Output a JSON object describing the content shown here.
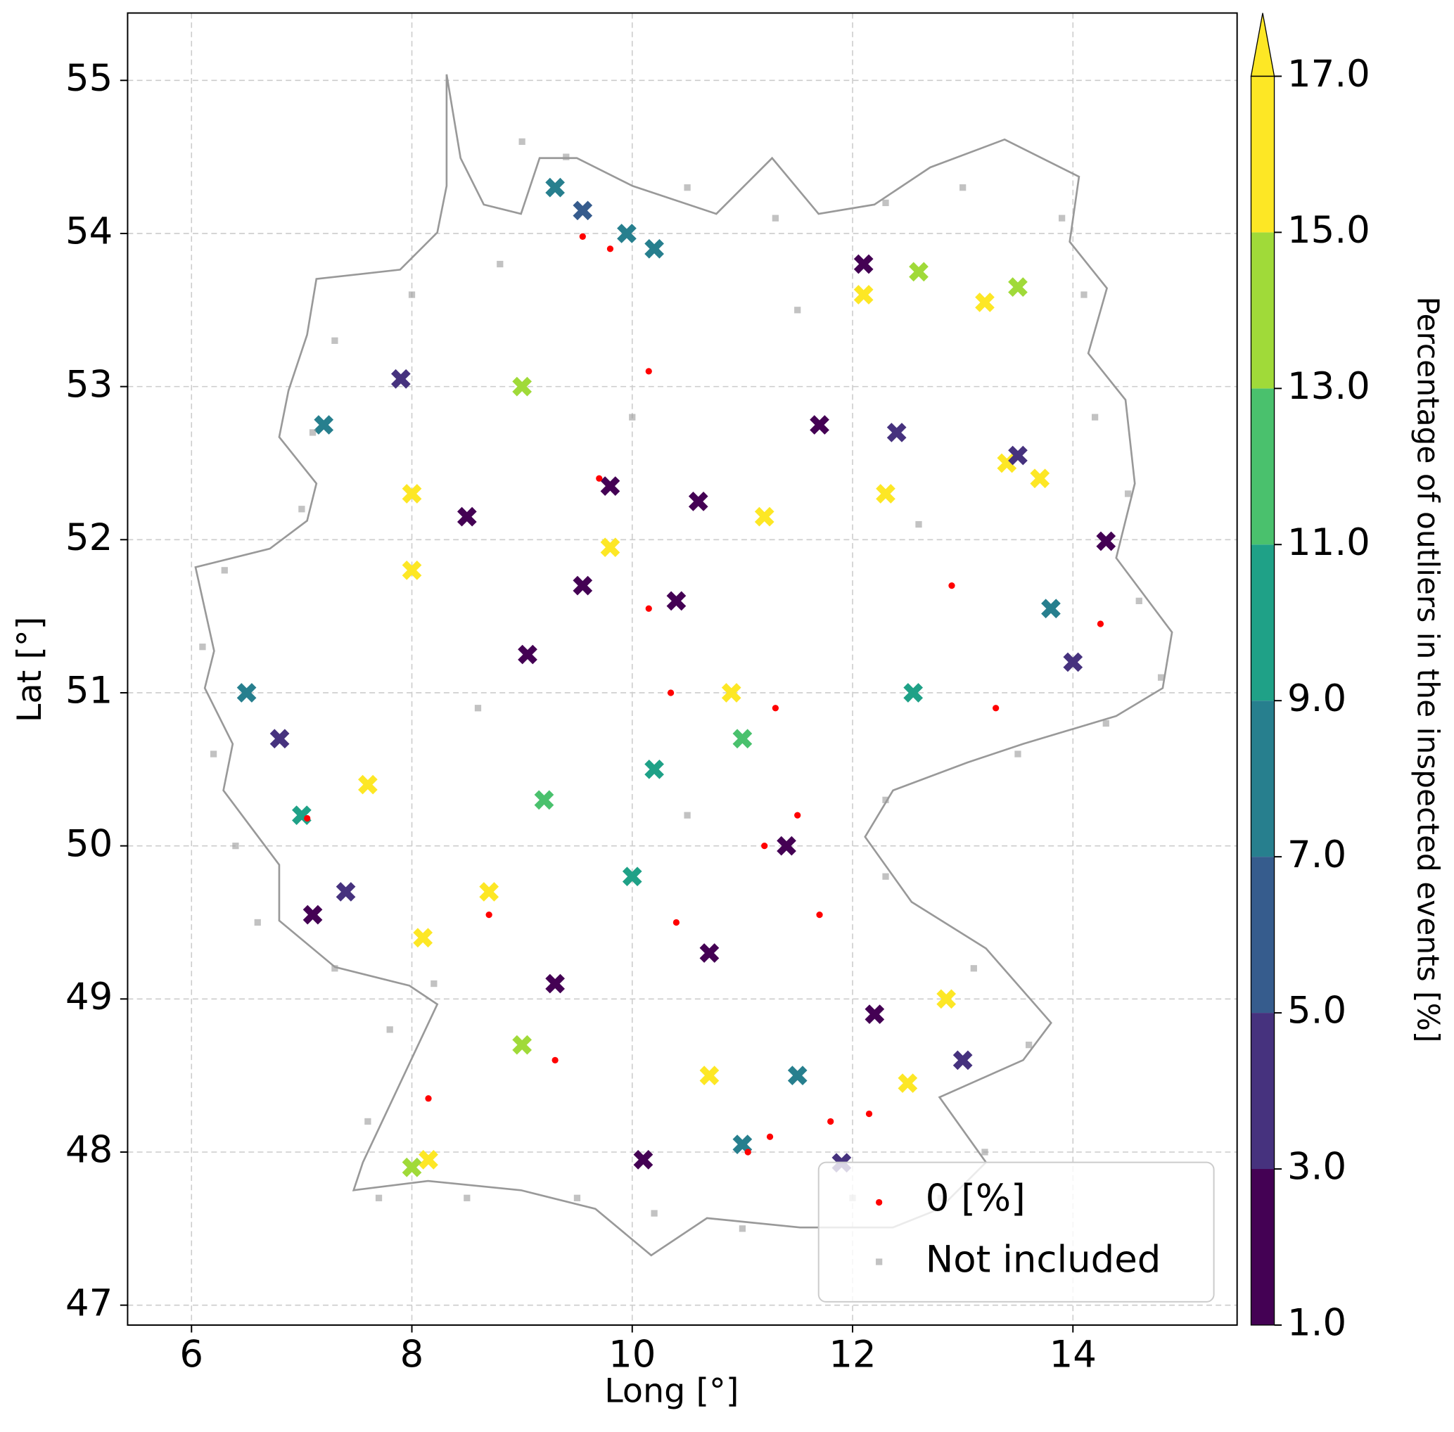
{
  "chart_data": {
    "type": "scatter",
    "xlabel": "Long [°]",
    "ylabel": "Lat [°]",
    "xlim": [
      5.42,
      15.49
    ],
    "ylim": [
      46.87,
      55.44
    ],
    "xticks": [
      6,
      8,
      10,
      12,
      14
    ],
    "yticks": [
      47,
      48,
      49,
      50,
      51,
      52,
      53,
      54,
      55
    ],
    "grid": true,
    "legend": "lower right",
    "colorbar": {
      "label": "Percentage of outliers in the inspected events [%]",
      "ticks": [
        {
          "value": 1,
          "label": "1.0"
        },
        {
          "value": 3,
          "label": "3.0"
        },
        {
          "value": 5,
          "label": "5.0"
        },
        {
          "value": 7,
          "label": "7.0"
        },
        {
          "value": 9,
          "label": "9.0"
        },
        {
          "value": 11,
          "label": "11.0"
        },
        {
          "value": 13,
          "label": "13.0"
        },
        {
          "value": 15,
          "label": "15.0"
        },
        {
          "value": 17,
          "label": "17.0"
        }
      ],
      "colors": [
        "#440154",
        "#46327e",
        "#365c8d",
        "#277f8e",
        "#1fa187",
        "#4ac16d",
        "#a0da39",
        "#fde725"
      ],
      "extend": "max"
    },
    "series": [
      {
        "marker": "x",
        "x": [
          9.3,
          9.55,
          9.95,
          10.2,
          9.0,
          7.9,
          7.2,
          8.5,
          9.8,
          10.6,
          11.2,
          12.1,
          12.1,
          12.6,
          13.5,
          13.2,
          14.3,
          14.0,
          13.8,
          6.5,
          6.8,
          7.0,
          7.1,
          7.4,
          8.1,
          8.15,
          8.0,
          9.3,
          10.1,
          10.7,
          11.4,
          11.7,
          12.85,
          12.5,
          11.0,
          11.9,
          13.0,
          12.2,
          9.55,
          9.05,
          10.4,
          7.6,
          8.0,
          8.0,
          12.55,
          11.0,
          10.2,
          9.2,
          10.0,
          9.0,
          10.7,
          11.5,
          12.3,
          13.4,
          13.7,
          12.4,
          13.5,
          8.7,
          9.8,
          10.9
        ],
        "y": [
          54.3,
          54.15,
          54.0,
          53.9,
          53.0,
          53.05,
          52.75,
          52.15,
          52.35,
          52.25,
          52.15,
          53.8,
          53.6,
          53.75,
          53.65,
          53.55,
          51.99,
          51.2,
          51.55,
          51.0,
          50.7,
          50.2,
          49.55,
          49.7,
          49.4,
          47.95,
          47.9,
          49.1,
          47.95,
          49.3,
          50.0,
          52.75,
          49.0,
          48.45,
          48.05,
          47.93,
          48.6,
          48.9,
          51.7,
          51.25,
          51.6,
          50.4,
          51.8,
          52.3,
          51.0,
          50.7,
          50.5,
          50.3,
          49.8,
          48.7,
          48.5,
          48.5,
          52.3,
          52.5,
          52.4,
          52.7,
          52.55,
          49.7,
          51.95,
          51.0
        ],
        "values": [
          7.5,
          6,
          8,
          8,
          13,
          4,
          7,
          2,
          2,
          2,
          17.5,
          2,
          17.5,
          14,
          14,
          16,
          2,
          3,
          8,
          7,
          3,
          10,
          2,
          3.5,
          17.5,
          17.5,
          13,
          2,
          2,
          2,
          2,
          2,
          17.5,
          17.5,
          8,
          4,
          3,
          2,
          2,
          2,
          2,
          16,
          17.5,
          17.5,
          9,
          11,
          9,
          12,
          10,
          14,
          17.5,
          7,
          17.5,
          17.5,
          16,
          3,
          4,
          15,
          17.5,
          17.5
        ]
      },
      {
        "name": "0 [%]",
        "color": "#ff0000",
        "x": [
          9.55,
          9.8,
          9.7,
          10.15,
          10.35,
          11.3,
          12.9,
          14.25,
          13.3,
          7.05,
          11.5,
          11.2,
          11.7,
          10.4,
          8.7,
          11.8,
          12.15,
          11.05,
          11.25,
          8.15,
          9.3,
          10.15
        ],
        "y": [
          53.98,
          53.9,
          52.4,
          51.55,
          51.0,
          50.9,
          51.7,
          51.45,
          50.9,
          50.18,
          50.2,
          50.0,
          49.55,
          49.5,
          49.55,
          48.2,
          48.25,
          48.0,
          48.1,
          48.35,
          48.6,
          53.1
        ]
      },
      {
        "name": "Not included",
        "color": "#999999",
        "x": [
          9.0,
          9.4,
          10.5,
          11.3,
          12.3,
          13.0,
          13.9,
          14.1,
          14.2,
          14.5,
          14.6,
          14.8,
          14.3,
          13.5,
          12.3,
          12.3,
          13.1,
          13.6,
          13.2,
          12.8,
          12.0,
          11.0,
          10.2,
          9.5,
          8.5,
          7.7,
          7.6,
          7.8,
          8.2,
          7.3,
          6.6,
          6.4,
          6.2,
          6.1,
          6.3,
          7.0,
          7.1,
          7.3,
          8.0,
          8.8,
          10.0,
          11.5,
          12.6,
          10.5,
          8.6
        ],
        "y": [
          54.6,
          54.5,
          54.3,
          54.1,
          54.2,
          54.3,
          54.1,
          53.6,
          52.8,
          52.3,
          51.6,
          51.1,
          50.8,
          50.6,
          50.3,
          49.8,
          49.2,
          48.7,
          48.0,
          47.7,
          47.7,
          47.5,
          47.6,
          47.7,
          47.7,
          47.7,
          48.2,
          48.8,
          49.1,
          49.2,
          49.5,
          50.0,
          50.6,
          51.3,
          51.8,
          52.2,
          52.7,
          53.3,
          53.6,
          53.8,
          52.8,
          53.5,
          52.1,
          50.2,
          50.9
        ]
      }
    ]
  }
}
